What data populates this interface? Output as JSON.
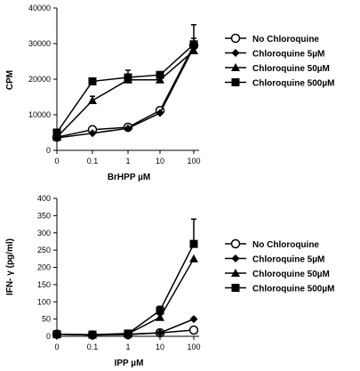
{
  "chart_data": [
    {
      "type": "line",
      "xlabel": "BrHPP µM",
      "ylabel": "CPM",
      "x_categories": [
        "0",
        "0.1",
        "1",
        "10",
        "100"
      ],
      "ylim": [
        0,
        40000
      ],
      "y_ticks": [
        "0",
        "10000",
        "20000",
        "30000",
        "40000"
      ],
      "grid": false,
      "legend_position": "right",
      "series": [
        {
          "name": "No Chloroquine",
          "marker": "open-circle",
          "values": [
            3700,
            5800,
            6500,
            11200,
            29500
          ],
          "errors": [
            0,
            1000,
            800,
            600,
            2000
          ]
        },
        {
          "name": "Chloroquine 5µM",
          "marker": "diamond",
          "values": [
            3500,
            4800,
            6200,
            10500,
            29000
          ],
          "errors": [
            0,
            0,
            0,
            0,
            0
          ]
        },
        {
          "name": "Chloroquine 50µM",
          "marker": "triangle",
          "values": [
            3700,
            14000,
            19800,
            19800,
            28000
          ],
          "errors": [
            0,
            1200,
            1500,
            0,
            1500
          ]
        },
        {
          "name": "Chloroquine 500µM",
          "marker": "square",
          "values": [
            5000,
            19400,
            20500,
            21200,
            29800
          ],
          "errors": [
            0,
            0,
            2000,
            800,
            5500
          ]
        }
      ]
    },
    {
      "type": "line",
      "xlabel": "IPP µM",
      "ylabel": "IFN- γ (pg/ml)",
      "x_categories": [
        "0",
        "0.1",
        "1",
        "10",
        "100"
      ],
      "ylim": [
        0,
        400
      ],
      "y_ticks": [
        "0",
        "50",
        "100",
        "150",
        "200",
        "250",
        "300",
        "350",
        "400"
      ],
      "grid": false,
      "legend_position": "right",
      "series": [
        {
          "name": "No Chloroquine",
          "marker": "open-circle",
          "values": [
            6,
            4,
            5,
            10,
            18
          ],
          "errors": [
            0,
            0,
            0,
            0,
            0
          ]
        },
        {
          "name": "Chloroquine 5µM",
          "marker": "diamond",
          "values": [
            6,
            4,
            6,
            10,
            50
          ],
          "errors": [
            0,
            0,
            0,
            0,
            0
          ]
        },
        {
          "name": "Chloroquine 50µM",
          "marker": "triangle",
          "values": [
            6,
            4,
            7,
            55,
            225
          ],
          "errors": [
            0,
            0,
            0,
            8,
            0
          ]
        },
        {
          "name": "Chloroquine 500µM",
          "marker": "square",
          "values": [
            6,
            5,
            8,
            75,
            268
          ],
          "errors": [
            0,
            0,
            0,
            12,
            72
          ]
        }
      ]
    }
  ]
}
